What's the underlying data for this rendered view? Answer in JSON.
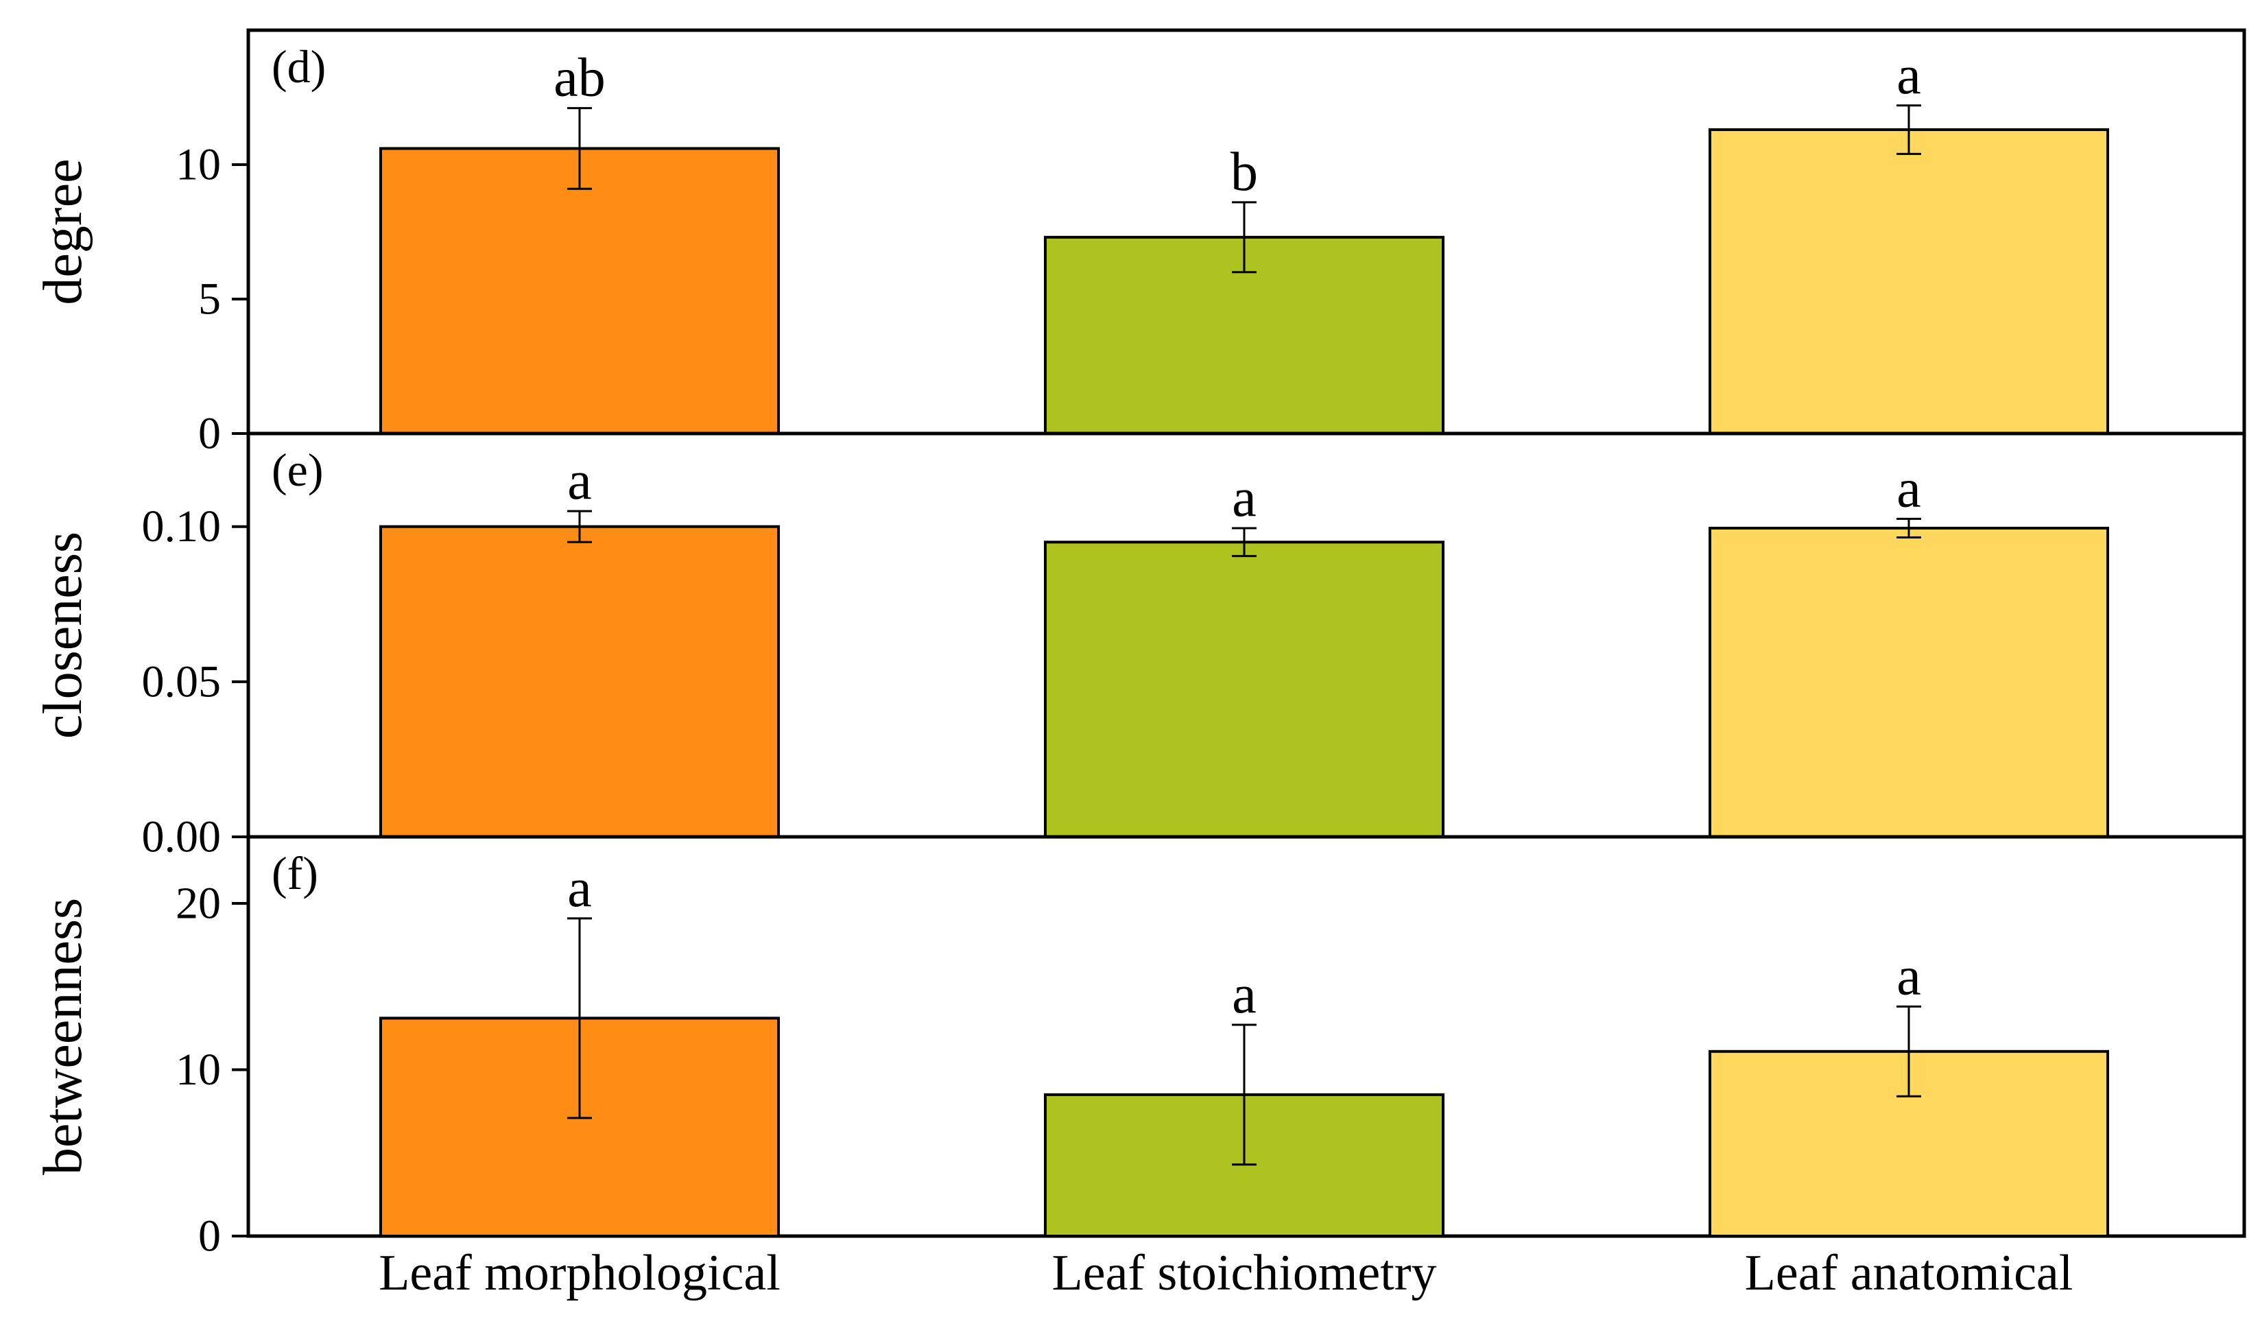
{
  "chart_data": {
    "type": "bar",
    "categories": [
      "Leaf morphological",
      "Leaf stoichiometry",
      "Leaf anatomical"
    ],
    "colors": [
      "#FF8C15",
      "#AEC220",
      "#FFD75C"
    ],
    "panels": [
      {
        "id": "d",
        "panel_label": "(d)",
        "ylabel": "degree",
        "ylim": [
          0,
          15
        ],
        "ticks": [
          0,
          5,
          10
        ],
        "tick_labels": [
          "0",
          "5",
          "10"
        ],
        "values": [
          10.6,
          7.3,
          11.3
        ],
        "errors": [
          1.5,
          1.3,
          0.9
        ],
        "letters": [
          "ab",
          "b",
          "a"
        ]
      },
      {
        "id": "e",
        "panel_label": "(e)",
        "ylabel": "closeness",
        "ylim": [
          0,
          0.13
        ],
        "ticks": [
          0,
          0.05,
          0.1
        ],
        "tick_labels": [
          "0.00",
          "0.05",
          "0.10"
        ],
        "values": [
          0.1,
          0.095,
          0.0995
        ],
        "errors": [
          0.005,
          0.0045,
          0.003
        ],
        "letters": [
          "a",
          "a",
          "a"
        ]
      },
      {
        "id": "f",
        "panel_label": "(f)",
        "ylabel": "betweenness",
        "ylim": [
          0,
          24
        ],
        "ticks": [
          0,
          10,
          20
        ],
        "tick_labels": [
          "0",
          "10",
          "20"
        ],
        "values": [
          13.1,
          8.5,
          11.1
        ],
        "errors": [
          6.0,
          4.2,
          2.7
        ],
        "letters": [
          "a",
          "a",
          "a"
        ]
      }
    ]
  }
}
